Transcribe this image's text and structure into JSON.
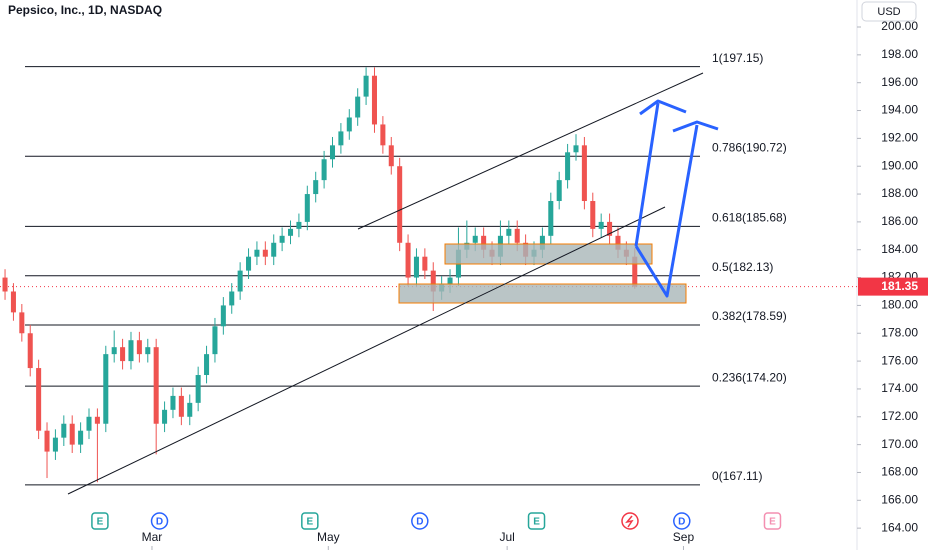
{
  "header": {
    "title": "Pepsico, Inc., 1D, NASDAQ",
    "currency": "USD"
  },
  "chart_data": {
    "type": "candlestick",
    "up_color": "#26a69a",
    "down_color": "#ef5350",
    "open": [
      182,
      181,
      179.5,
      178,
      175.5,
      171,
      169.5,
      170.5,
      171.5,
      170,
      171,
      172,
      171.5,
      176.5,
      177,
      176,
      177.5,
      176.5,
      177,
      171.5,
      172.5,
      173.5,
      172,
      173,
      175,
      176.5,
      178.5,
      180,
      181,
      182.5,
      183.5,
      184,
      183.5,
      184.5,
      185,
      185.5,
      186,
      188,
      189,
      190.5,
      191.5,
      192.5,
      193.5,
      195,
      196.5,
      193,
      191.5,
      190,
      184.5,
      182,
      183.5,
      182.5,
      181,
      181.5,
      182,
      184,
      184.5,
      185,
      184,
      183.5,
      185,
      185.5,
      184.5,
      183.5,
      184,
      185,
      187.5,
      189,
      191,
      191.5,
      187.5,
      185.5,
      186,
      185,
      184,
      183.5
    ],
    "high": [
      182.6,
      181.6,
      180.1,
      178.6,
      176.1,
      171.6,
      171.1,
      172.1,
      172.1,
      171.6,
      172.6,
      172.6,
      177.1,
      178.2,
      177.6,
      178.1,
      178.1,
      177.6,
      177.6,
      173.1,
      174.1,
      174.1,
      173.6,
      175.6,
      177.1,
      179.1,
      180.6,
      181.6,
      183.1,
      184.1,
      184.6,
      184.6,
      185.1,
      185.6,
      186.1,
      186.6,
      188.6,
      189.6,
      191.1,
      192.1,
      193.1,
      194.1,
      195.6,
      197.1,
      197.1,
      193.6,
      192.1,
      190.6,
      185.1,
      184.1,
      184.1,
      183.1,
      182.1,
      182.6,
      185.6,
      186.1,
      185.6,
      185.6,
      184.6,
      186.1,
      186.1,
      186.1,
      185.1,
      184.6,
      185.6,
      188.1,
      189.6,
      191.6,
      192.3,
      192.1,
      188.1,
      186.6,
      186.6,
      185.6,
      184.6,
      184.1
    ],
    "low": [
      180.4,
      178.9,
      177.4,
      174.9,
      170.4,
      167.6,
      168.9,
      169.9,
      169.4,
      169.4,
      170.4,
      167.3,
      170.9,
      175.9,
      175.4,
      175.4,
      175.9,
      175.9,
      169.3,
      170.9,
      171.9,
      171.4,
      171.4,
      172.4,
      174.4,
      175.9,
      177.9,
      179.4,
      180.4,
      181.9,
      182.9,
      182.9,
      182.9,
      183.9,
      184.4,
      184.9,
      185.4,
      187.4,
      188.4,
      189.9,
      190.9,
      191.9,
      192.9,
      194.4,
      192.4,
      190.9,
      189.4,
      183.9,
      181.4,
      181.4,
      181.9,
      179.6,
      180.4,
      180.9,
      181.4,
      183.4,
      183.9,
      183.4,
      182.9,
      182.9,
      184.4,
      183.9,
      182.9,
      182.9,
      183.4,
      184.4,
      186.9,
      188.4,
      190.4,
      186.9,
      184.9,
      184.9,
      184.4,
      183.4,
      182.9,
      181.2
    ],
    "close": [
      181,
      179.5,
      178,
      175.5,
      171,
      169.5,
      170.5,
      171.5,
      170,
      171,
      172,
      171.5,
      176.5,
      177,
      176,
      177.5,
      176.5,
      177,
      171.5,
      172.5,
      173.5,
      172,
      173,
      175,
      176.5,
      178.5,
      180,
      181,
      182.5,
      183.5,
      184,
      183.5,
      184.5,
      185,
      185.5,
      186,
      188,
      189,
      190.5,
      191.5,
      192.5,
      193.5,
      195,
      196.5,
      193,
      191.5,
      190,
      184.5,
      182,
      183.5,
      182.5,
      181,
      181.5,
      182,
      184,
      184.5,
      185,
      184,
      183.5,
      185,
      185.5,
      184.5,
      183.5,
      184,
      185,
      187.5,
      189,
      191,
      191.5,
      187.5,
      185.5,
      186,
      185,
      184,
      183.5,
      181.35
    ],
    "xlim": [
      -0.6,
      110.4
    ],
    "xticks": [
      {
        "value": 17.5,
        "label": "Mar"
      },
      {
        "value": 38.5,
        "label": "May"
      },
      {
        "value": 59.8,
        "label": "Jul"
      },
      {
        "value": 80.8,
        "label": "Sep"
      }
    ],
    "ylim": [
      162.43,
      201.94
    ],
    "yticks": [
      {
        "value": 164,
        "label": "164.00"
      },
      {
        "value": 166,
        "label": "166.00"
      },
      {
        "value": 168,
        "label": "168.00"
      },
      {
        "value": 170,
        "label": "170.00"
      },
      {
        "value": 172,
        "label": "172.00"
      },
      {
        "value": 174,
        "label": "174.00"
      },
      {
        "value": 176,
        "label": "176.00"
      },
      {
        "value": 178,
        "label": "178.00"
      },
      {
        "value": 180,
        "label": "180.00"
      },
      {
        "value": 182,
        "label": "182.00"
      },
      {
        "value": 184,
        "label": "184.00"
      },
      {
        "value": 186,
        "label": "186.00"
      },
      {
        "value": 188,
        "label": "188.00"
      },
      {
        "value": 190,
        "label": "190.00"
      },
      {
        "value": 192,
        "label": "192.00"
      },
      {
        "value": 194,
        "label": "194.00"
      },
      {
        "value": 196,
        "label": "196.00"
      },
      {
        "value": 198,
        "label": "198.00"
      },
      {
        "value": 200,
        "label": "200.00"
      }
    ],
    "last_price": 181.35,
    "last_price_color": "#f23645",
    "fib_levels": [
      {
        "label": "1(197.15)",
        "value": 197.15
      },
      {
        "label": "0.786(190.72)",
        "value": 190.72
      },
      {
        "label": "0.618(185.68)",
        "value": 185.68
      },
      {
        "label": "0.5(182.13)",
        "value": 182.13
      },
      {
        "label": "0.382(178.59)",
        "value": 178.59
      },
      {
        "label": "0.236(174.20)",
        "value": 174.2
      },
      {
        "label": "0(167.11)",
        "value": 167.11
      }
    ],
    "events": [
      {
        "label": "E",
        "x": 11.3,
        "color": "#26a69a"
      },
      {
        "label": "D",
        "x": 18.4,
        "color": "#2962ff"
      },
      {
        "label": "E",
        "x": 36.3,
        "color": "#26a69a"
      },
      {
        "label": "D",
        "x": 49.4,
        "color": "#2962ff"
      },
      {
        "label": "E",
        "x": 63.3,
        "color": "#26a69a"
      },
      {
        "label": "D",
        "x": 80.6,
        "color": "#2962ff"
      },
      {
        "label": "E",
        "x": 91.4,
        "color": "#f48fb1"
      }
    ]
  }
}
